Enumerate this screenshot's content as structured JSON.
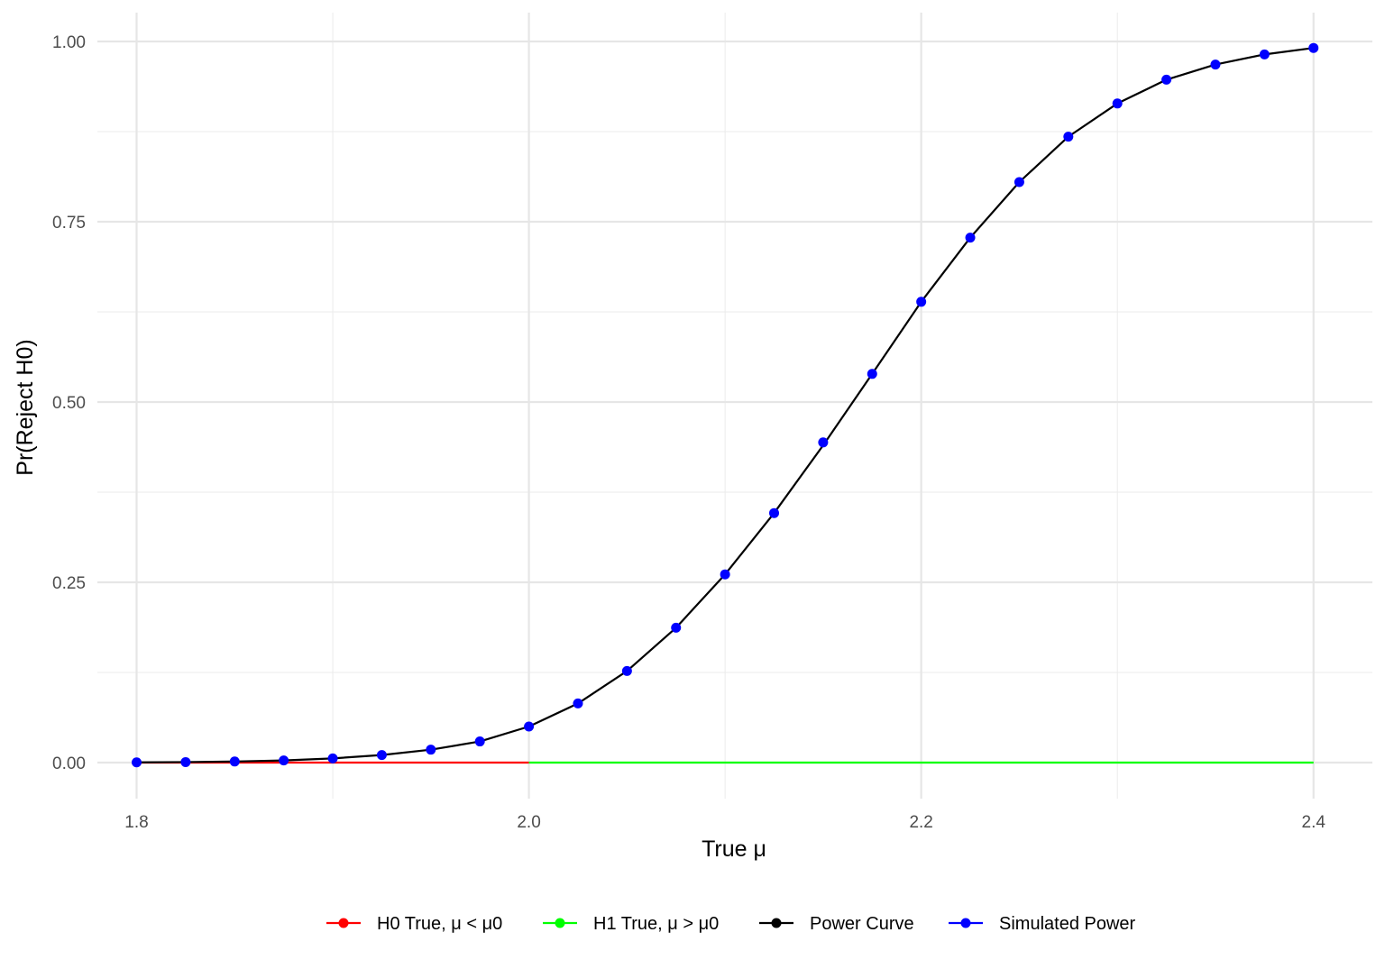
{
  "chart_data": {
    "type": "line",
    "title": "",
    "xlabel": "True μ",
    "ylabel": "Pr(Reject H0)",
    "xlim": [
      1.78,
      2.43
    ],
    "ylim": [
      -0.05,
      1.04
    ],
    "grid": true,
    "legend_position": "bottom",
    "x_ticks": [
      1.8,
      2.0,
      2.2,
      2.4
    ],
    "x_tick_labels": [
      "1.8",
      "2.0",
      "2.2",
      "2.4"
    ],
    "y_ticks": [
      0.0,
      0.25,
      0.5,
      0.75,
      1.0
    ],
    "y_tick_labels": [
      "0.00",
      "0.25",
      "0.50",
      "0.75",
      "1.00"
    ],
    "series": [
      {
        "name": "H0 True, μ < μ0",
        "color": "#ff0000",
        "kind": "line",
        "x": [
          1.8,
          2.0
        ],
        "y": [
          0,
          0
        ]
      },
      {
        "name": "H1 True, μ > μ0",
        "color": "#00ff00",
        "kind": "line",
        "x": [
          2.0,
          2.4
        ],
        "y": [
          0,
          0
        ]
      },
      {
        "name": "Power Curve",
        "color": "#000000",
        "kind": "line",
        "x": [
          1.8,
          1.825,
          1.85,
          1.875,
          1.9,
          1.925,
          1.95,
          1.975,
          2.0,
          2.025,
          2.05,
          2.075,
          2.1,
          2.125,
          2.15,
          2.175,
          2.2,
          2.225,
          2.25,
          2.275,
          2.3,
          2.325,
          2.35,
          2.375,
          2.4
        ],
        "y": [
          0.0003,
          0.0007,
          0.0015,
          0.003,
          0.0058,
          0.0105,
          0.0179,
          0.0293,
          0.05,
          0.082,
          0.127,
          0.187,
          0.261,
          0.346,
          0.44,
          0.539,
          0.639,
          0.728,
          0.805,
          0.868,
          0.914,
          0.947,
          0.968,
          0.982,
          0.991
        ]
      },
      {
        "name": "Simulated Power",
        "color": "#0000ff",
        "kind": "points",
        "x": [
          1.8,
          1.825,
          1.85,
          1.875,
          1.9,
          1.925,
          1.95,
          1.975,
          2.0,
          2.025,
          2.05,
          2.075,
          2.1,
          2.125,
          2.15,
          2.175,
          2.2,
          2.225,
          2.25,
          2.275,
          2.3,
          2.325,
          2.35,
          2.375,
          2.4
        ],
        "y": [
          0.0003,
          0.0007,
          0.0015,
          0.003,
          0.0058,
          0.0105,
          0.0179,
          0.0293,
          0.05,
          0.082,
          0.127,
          0.187,
          0.261,
          0.346,
          0.444,
          0.539,
          0.639,
          0.728,
          0.805,
          0.868,
          0.914,
          0.947,
          0.968,
          0.982,
          0.991
        ]
      }
    ]
  }
}
